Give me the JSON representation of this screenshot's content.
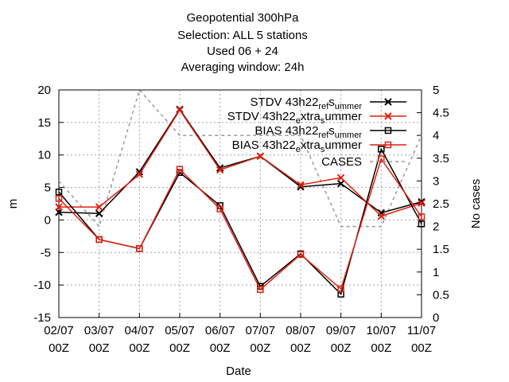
{
  "title_lines": [
    "Geopotential 300hPa",
    "Selection: ALL       5 stations",
    "Used  06  + 24",
    "Averaging window: 24h"
  ],
  "chart_data": {
    "type": "line",
    "xlabel": "Date",
    "ylabel": "m",
    "y2label": "No cases",
    "ylim": [
      -15,
      20
    ],
    "y2lim": [
      0,
      5
    ],
    "y_ticks": [
      -15,
      -10,
      -5,
      0,
      5,
      10,
      15,
      20
    ],
    "y2_ticks": [
      0,
      0.5,
      1,
      1.5,
      2,
      2.5,
      3,
      3.5,
      4,
      4.5,
      5
    ],
    "grid": true,
    "legend_position": "top-right",
    "categories": [
      {
        "date": "02/07",
        "time": "00Z"
      },
      {
        "date": "03/07",
        "time": "00Z"
      },
      {
        "date": "04/07",
        "time": "00Z"
      },
      {
        "date": "05/07",
        "time": "00Z"
      },
      {
        "date": "06/07",
        "time": "00Z"
      },
      {
        "date": "07/07",
        "time": "00Z"
      },
      {
        "date": "08/07",
        "time": "00Z"
      },
      {
        "date": "09/07",
        "time": "00Z"
      },
      {
        "date": "10/07",
        "time": "00Z"
      },
      {
        "date": "11/07",
        "time": "00Z"
      }
    ],
    "series": [
      {
        "name": "STDV 43h22_ref_summer",
        "name_parts": [
          "STDV 43h22",
          "ref",
          "s",
          "ummer"
        ],
        "axis": "y",
        "color": "#000000",
        "marker": "x-star",
        "dashed": false,
        "values": [
          1.2,
          1.0,
          7.4,
          17.0,
          8.0,
          9.8,
          5.1,
          5.6,
          1.1,
          2.8
        ]
      },
      {
        "name": "STDV 43h22_extra_summer",
        "name_parts": [
          "STDV 43h22",
          "e",
          "xtra",
          "s",
          "ummer"
        ],
        "axis": "y",
        "color": "#e02010",
        "marker": "x-star",
        "dashed": false,
        "values": [
          2.0,
          2.0,
          7.0,
          16.9,
          7.7,
          9.8,
          5.4,
          6.5,
          0.6,
          2.6
        ]
      },
      {
        "name": "BIAS 43h22_ref_summer",
        "name_parts": [
          "BIAS 43h22",
          "ref",
          "s",
          "ummer"
        ],
        "axis": "y",
        "color": "#000000",
        "marker": "square",
        "dashed": false,
        "values": [
          4.3,
          -3.0,
          -4.4,
          7.3,
          2.2,
          -10.2,
          -5.2,
          -11.4,
          10.9,
          -0.6
        ]
      },
      {
        "name": "BIAS 43h22_extra_summer",
        "name_parts": [
          "BIAS 43h22",
          "e",
          "xtra",
          "s",
          "ummer"
        ],
        "axis": "y",
        "color": "#e02010",
        "marker": "square",
        "dashed": false,
        "values": [
          3.3,
          -3.0,
          -4.4,
          7.8,
          1.7,
          -10.7,
          -5.3,
          -10.6,
          9.4,
          0.5
        ]
      },
      {
        "name": "CASES",
        "name_parts": [
          "CASES"
        ],
        "axis": "y2",
        "color": "#999999",
        "marker": "none",
        "dashed": true,
        "values": [
          3.0,
          2.0,
          5.0,
          4.0,
          4.0,
          4.0,
          4.0,
          2.0,
          2.0,
          4.0
        ]
      }
    ]
  }
}
